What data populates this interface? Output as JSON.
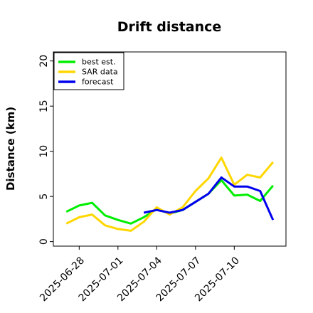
{
  "chart_data": {
    "type": "line",
    "title": "Drift distance",
    "xlabel": "",
    "ylabel": "Distance (km)",
    "x_ticks": [
      "2025-06-28",
      "2025-07-01",
      "2025-07-04",
      "2025-07-07",
      "2025-07-10"
    ],
    "y_ticks": [
      "0",
      "5",
      "10",
      "15",
      "20"
    ],
    "ylim": [
      -0.5,
      21
    ],
    "xlim": [
      "2025-06-26",
      "2025-07-14"
    ],
    "grid": false,
    "legend_position": "top-left",
    "series": [
      {
        "name": "best est.",
        "color": "#00ee00",
        "points": [
          [
            "2025-06-27",
            3.3
          ],
          [
            "2025-06-28",
            4.0
          ],
          [
            "2025-06-29",
            4.3
          ],
          [
            "2025-06-30",
            2.9
          ],
          [
            "2025-07-01",
            2.4
          ],
          [
            "2025-07-02",
            2.0
          ],
          [
            "2025-07-03",
            2.7
          ],
          [
            "2025-07-04",
            3.6
          ],
          [
            "2025-07-05",
            3.1
          ],
          [
            "2025-07-06",
            3.5
          ],
          [
            "2025-07-07",
            4.4
          ],
          [
            "2025-07-08",
            5.3
          ],
          [
            "2025-07-09",
            6.8
          ],
          [
            "2025-07-10",
            5.1
          ],
          [
            "2025-07-11",
            5.2
          ],
          [
            "2025-07-12",
            4.5
          ],
          [
            "2025-07-13",
            6.2
          ]
        ]
      },
      {
        "name": "SAR data",
        "color": "#ffd700",
        "points": [
          [
            "2025-06-27",
            2.0
          ],
          [
            "2025-06-28",
            2.7
          ],
          [
            "2025-06-29",
            3.0
          ],
          [
            "2025-06-30",
            1.8
          ],
          [
            "2025-07-01",
            1.4
          ],
          [
            "2025-07-02",
            1.2
          ],
          [
            "2025-07-03",
            2.2
          ],
          [
            "2025-07-04",
            3.8
          ],
          [
            "2025-07-05",
            3.0
          ],
          [
            "2025-07-06",
            3.8
          ],
          [
            "2025-07-07",
            5.6
          ],
          [
            "2025-07-08",
            7.0
          ],
          [
            "2025-07-09",
            9.3
          ],
          [
            "2025-07-10",
            6.3
          ],
          [
            "2025-07-11",
            7.4
          ],
          [
            "2025-07-12",
            7.1
          ],
          [
            "2025-07-13",
            8.8
          ]
        ]
      },
      {
        "name": "forecast",
        "color": "#0000ee",
        "points": [
          [
            "2025-07-03",
            3.2
          ],
          [
            "2025-07-04",
            3.5
          ],
          [
            "2025-07-05",
            3.2
          ],
          [
            "2025-07-06",
            3.5
          ],
          [
            "2025-07-07",
            4.4
          ],
          [
            "2025-07-08",
            5.3
          ],
          [
            "2025-07-09",
            7.1
          ],
          [
            "2025-07-10",
            6.1
          ],
          [
            "2025-07-11",
            6.1
          ],
          [
            "2025-07-12",
            5.6
          ],
          [
            "2025-07-13",
            2.4
          ]
        ]
      }
    ]
  }
}
